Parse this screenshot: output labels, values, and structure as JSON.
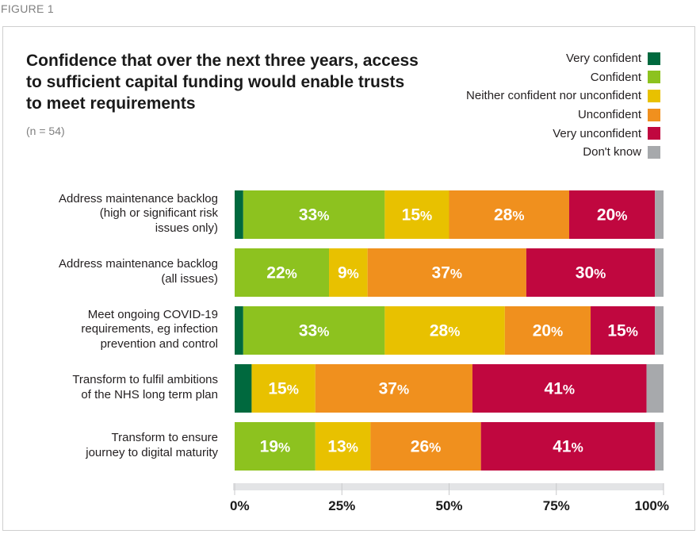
{
  "figure_label": "FIGURE 1",
  "chart_data": {
    "type": "bar",
    "orientation": "horizontal",
    "stacked": true,
    "title": "Confidence that over the next three years, access to sufficient capital funding would enable trusts to meet requirements",
    "subtitle": "(n = 54)",
    "legend_position": "top-right",
    "categories": [
      "Address maintenance backlog (high or significant risk issues only)",
      "Address maintenance backlog (all issues)",
      "Meet ongoing COVID-19 requirements, eg infection prevention and control",
      "Transform to fulfil ambitions of the NHS long term plan",
      "Transform to ensure journey to digital maturity"
    ],
    "category_lines": [
      [
        "Address maintenance backlog",
        "(high or significant risk",
        "issues only)"
      ],
      [
        "Address maintenance backlog",
        "(all issues)"
      ],
      [
        "Meet ongoing COVID-19",
        "requirements, eg infection",
        "prevention and control"
      ],
      [
        "Transform to fulfil ambitions",
        "of the NHS long term plan"
      ],
      [
        "Transform to ensure",
        "journey to digital maturity"
      ]
    ],
    "series": [
      {
        "name": "Very confident",
        "color": "#00693e",
        "values": [
          2,
          0,
          2,
          4,
          0
        ]
      },
      {
        "name": "Confident",
        "color": "#8dc21f",
        "values": [
          33,
          22,
          33,
          0,
          19
        ]
      },
      {
        "name": "Neither confident nor unconfident",
        "color": "#e8c100",
        "values": [
          15,
          9,
          28,
          15,
          13
        ]
      },
      {
        "name": "Unconfident",
        "color": "#f0901e",
        "values": [
          28,
          37,
          20,
          37,
          26
        ]
      },
      {
        "name": "Very unconfident",
        "color": "#c0073f",
        "values": [
          20,
          30,
          15,
          41,
          41
        ]
      },
      {
        "name": "Don't know",
        "color": "#a7a9ac",
        "values": [
          2,
          2,
          2,
          4,
          2
        ]
      }
    ],
    "data_labels": [
      [
        "",
        "33",
        "15",
        "28",
        "20",
        ""
      ],
      [
        "",
        "22",
        "9",
        "37",
        "30",
        ""
      ],
      [
        "",
        "33",
        "28",
        "20",
        "15",
        ""
      ],
      [
        "",
        "",
        "15",
        "37",
        "41",
        ""
      ],
      [
        "",
        "19",
        "13",
        "26",
        "41",
        ""
      ]
    ],
    "data_label_suffix": "%",
    "xlim": [
      0,
      100
    ],
    "xticks": [
      "0%",
      "25%",
      "50%",
      "75%",
      "100%"
    ],
    "grid": false
  }
}
